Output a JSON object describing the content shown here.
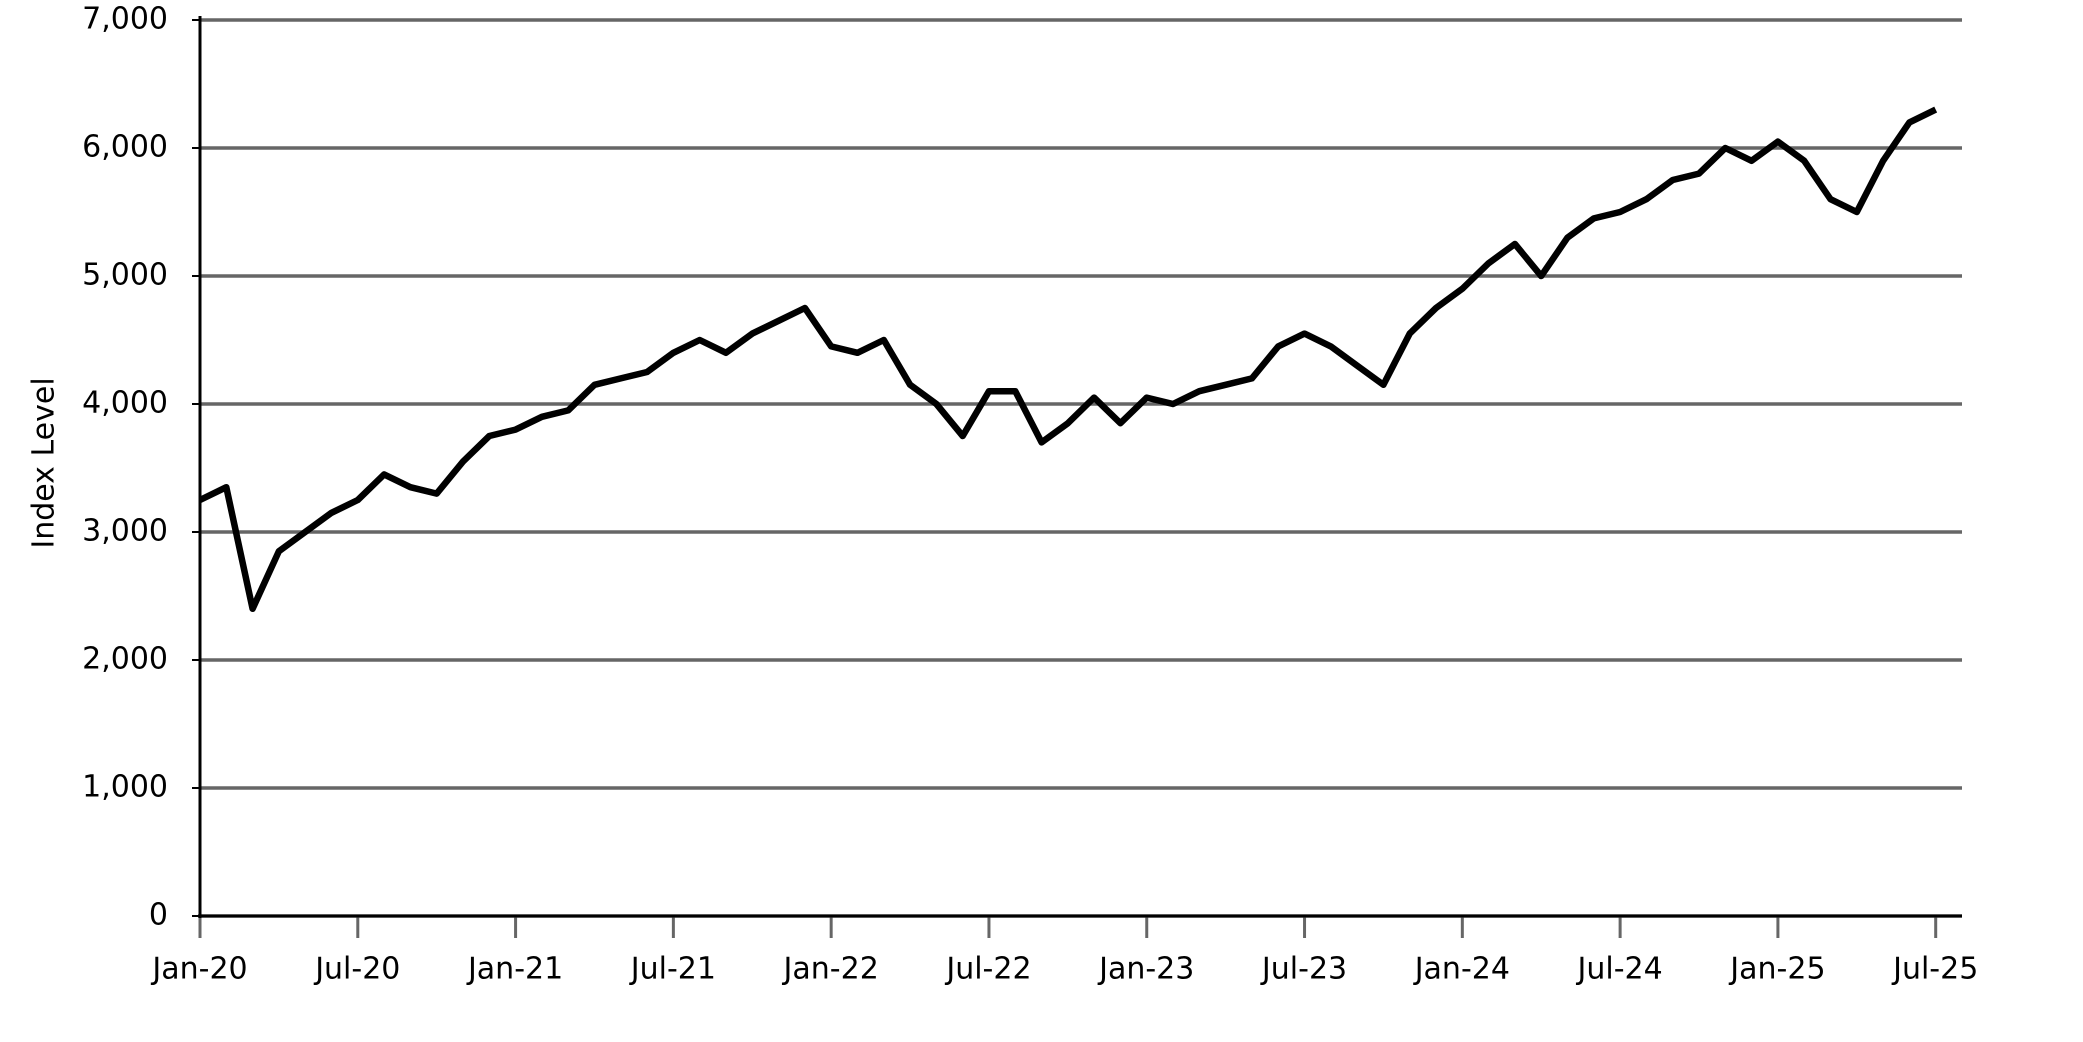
{
  "chart_data": {
    "type": "line",
    "y_label": "Index Level",
    "x": [
      "2020-01",
      "2020-02",
      "2020-03",
      "2020-04",
      "2020-05",
      "2020-06",
      "2020-07",
      "2020-08",
      "2020-09",
      "2020-10",
      "2020-11",
      "2020-12",
      "2021-01",
      "2021-02",
      "2021-03",
      "2021-04",
      "2021-05",
      "2021-06",
      "2021-07",
      "2021-08",
      "2021-09",
      "2021-10",
      "2021-11",
      "2021-12",
      "2022-01",
      "2022-02",
      "2022-03",
      "2022-04",
      "2022-05",
      "2022-06",
      "2022-07",
      "2022-08",
      "2022-09",
      "2022-10",
      "2022-11",
      "2022-12",
      "2023-01",
      "2023-02",
      "2023-03",
      "2023-04",
      "2023-05",
      "2023-06",
      "2023-07",
      "2023-08",
      "2023-09",
      "2023-10",
      "2023-11",
      "2023-12",
      "2024-01",
      "2024-02",
      "2024-03",
      "2024-04",
      "2024-05",
      "2024-06",
      "2024-07",
      "2024-08",
      "2024-09",
      "2024-10",
      "2024-11",
      "2024-12",
      "2025-01",
      "2025-02",
      "2025-03",
      "2025-04",
      "2025-05",
      "2025-06",
      "2025-07"
    ],
    "series": [
      {
        "name": "Index Level",
        "color": "#000000",
        "values": [
          3250,
          3350,
          2400,
          2850,
          3000,
          3150,
          3250,
          3450,
          3350,
          3300,
          3550,
          3750,
          3800,
          3900,
          3950,
          4150,
          4200,
          4250,
          4400,
          4500,
          4400,
          4550,
          4650,
          4750,
          4450,
          4400,
          4500,
          4150,
          4000,
          3750,
          4100,
          4100,
          3700,
          3850,
          4050,
          3850,
          4050,
          4000,
          4100,
          4150,
          4200,
          4450,
          4550,
          4450,
          4300,
          4150,
          4550,
          4750,
          4900,
          5100,
          5250,
          5000,
          5300,
          5450,
          5500,
          5600,
          5750,
          5800,
          6000,
          5900,
          6050,
          5900,
          5600,
          5500,
          5900,
          6200,
          6300
        ]
      }
    ],
    "xlim": [
      "2020-01",
      "2025-08"
    ],
    "xticks": [
      {
        "value": "2020-01",
        "label": "Jan-20"
      },
      {
        "value": "2020-07",
        "label": "Jul-20"
      },
      {
        "value": "2021-01",
        "label": "Jan-21"
      },
      {
        "value": "2021-07",
        "label": "Jul-21"
      },
      {
        "value": "2022-01",
        "label": "Jan-22"
      },
      {
        "value": "2022-07",
        "label": "Jul-22"
      },
      {
        "value": "2023-01",
        "label": "Jan-23"
      },
      {
        "value": "2023-07",
        "label": "Jul-23"
      },
      {
        "value": "2024-01",
        "label": "Jan-24"
      },
      {
        "value": "2024-07",
        "label": "Jul-24"
      },
      {
        "value": "2025-01",
        "label": "Jan-25"
      },
      {
        "value": "2025-07",
        "label": "Jul-25"
      }
    ],
    "ylim": [
      0,
      7000
    ],
    "yticks": [
      0,
      {
        "value": 1000,
        "label": "1,000"
      },
      {
        "value": 2000,
        "label": "2,000"
      },
      {
        "value": 3000,
        "label": "3,000"
      },
      {
        "value": 4000,
        "label": "4,000"
      },
      {
        "value": 5000,
        "label": "5,000"
      },
      {
        "value": 6000,
        "label": "6,000"
      },
      {
        "value": 7000,
        "label": "7,000"
      }
    ],
    "grid": true,
    "grid_color": "#666666"
  }
}
